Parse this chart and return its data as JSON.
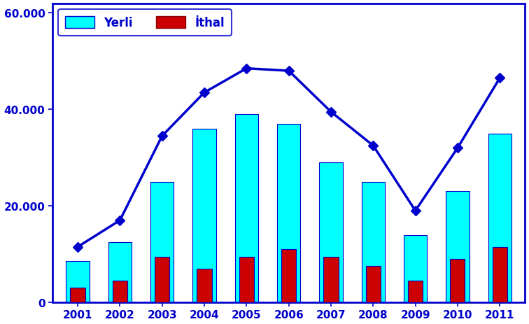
{
  "years": [
    2001,
    2002,
    2003,
    2004,
    2005,
    2006,
    2007,
    2008,
    2009,
    2010,
    2011
  ],
  "yerli": [
    8500,
    12500,
    25000,
    36000,
    39000,
    37000,
    29000,
    25000,
    14000,
    23000,
    35000
  ],
  "ithal": [
    3000,
    4500,
    9500,
    7000,
    9500,
    11000,
    9500,
    7500,
    4500,
    9000,
    11500
  ],
  "total_line": [
    11500,
    17000,
    34500,
    43500,
    48500,
    48000,
    39500,
    32500,
    19000,
    32000,
    46500
  ],
  "bar_color_yerli": "#00FFFF",
  "bar_color_ithal": "#CC0000",
  "line_color": "#0000CC",
  "line_marker": "D",
  "axis_color": "#0000CC",
  "background_color": "#FFFFFF",
  "legend_yerli": "Yerli",
  "legend_ithal": "İthal",
  "ylim": [
    0,
    62000
  ],
  "yticks": [
    0,
    20000,
    40000,
    60000
  ],
  "ytick_labels": [
    "0",
    "20.000",
    "40.000",
    "60.000"
  ],
  "tick_fontsize": 11,
  "legend_fontsize": 12
}
